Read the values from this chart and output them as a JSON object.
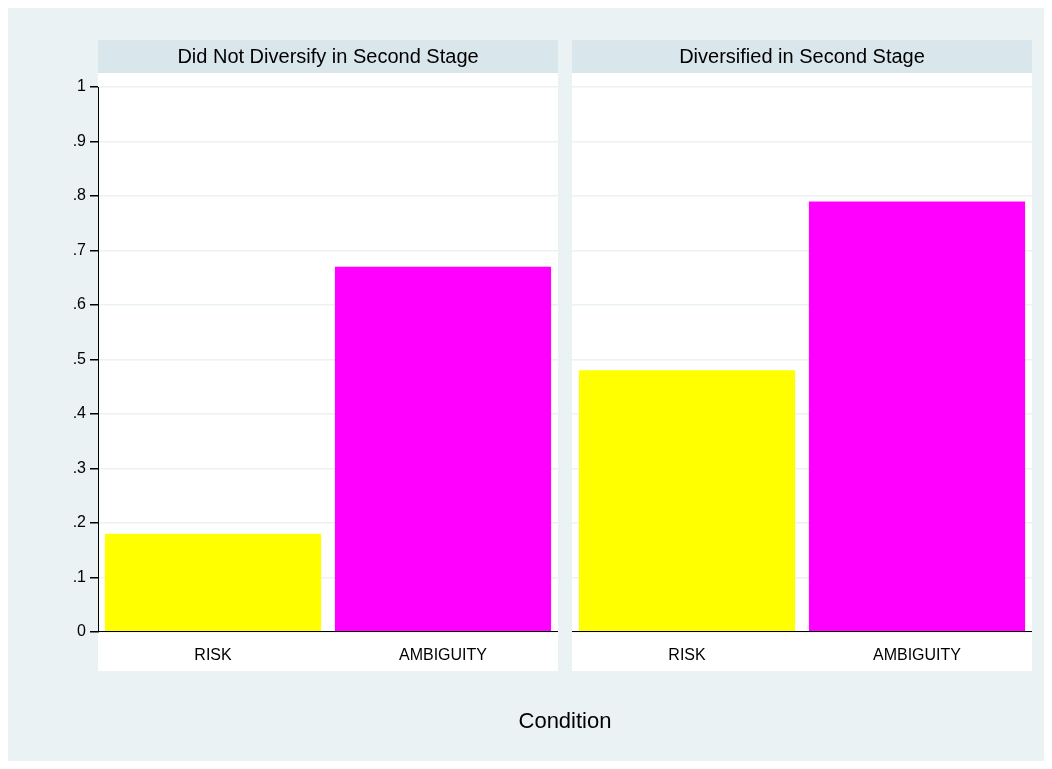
{
  "chart_data": [
    {
      "type": "bar",
      "title": "Did Not Diversify in Second Stage",
      "xlabel": "Condition",
      "categories": [
        "RISK",
        "AMBIGUITY"
      ],
      "values": [
        0.18,
        0.67
      ],
      "colors": [
        "#ffff00",
        "#ff00ff"
      ],
      "ylim": [
        0,
        1
      ],
      "yticks": [
        0,
        {
          "value": 0.1,
          "label": ".1"
        },
        {
          "value": 0.2,
          "label": ".2"
        },
        {
          "value": 0.3,
          "label": ".3"
        },
        {
          "value": 0.4,
          "label": ".4"
        },
        {
          "value": 0.5,
          "label": ".5"
        },
        {
          "value": 0.6,
          "label": ".6"
        },
        {
          "value": 0.7,
          "label": ".7"
        },
        {
          "value": 0.8,
          "label": ".8"
        },
        {
          "value": 0.9,
          "label": ".9"
        },
        1
      ],
      "grid": "y"
    },
    {
      "type": "bar",
      "title": "Diversified in Second Stage",
      "categories": [
        "RISK",
        "AMBIGUITY"
      ],
      "values": [
        0.48,
        0.79
      ],
      "colors": [
        "#ffff00",
        "#ff00ff"
      ],
      "ylim": [
        0,
        1
      ],
      "yticks": [
        0,
        0.1,
        0.2,
        0.3,
        0.4,
        0.5,
        0.6,
        0.7,
        0.8,
        0.9,
        1
      ],
      "grid": "y",
      "tick_labels": "x"
    }
  ]
}
